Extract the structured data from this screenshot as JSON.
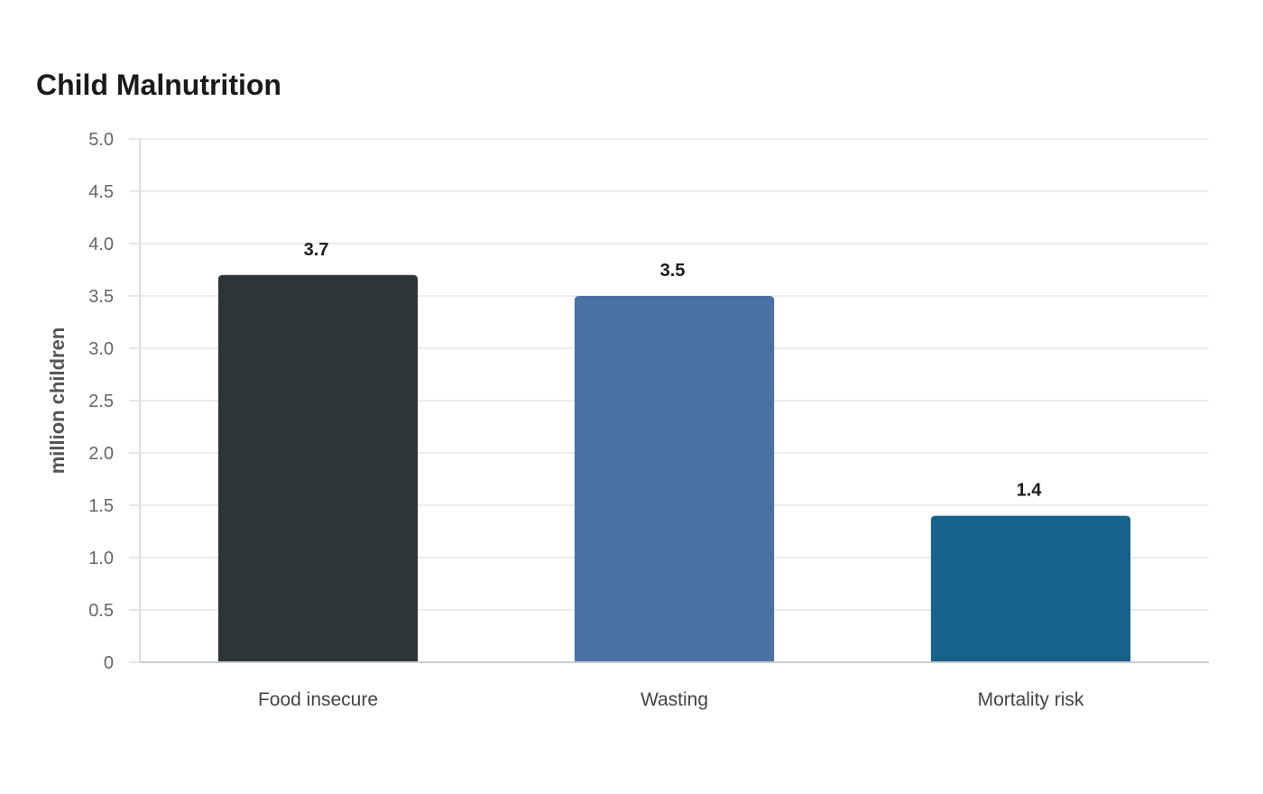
{
  "chart_data": {
    "type": "bar",
    "title": "Child Malnutrition",
    "xlabel": "",
    "ylabel": "million children",
    "categories": [
      "Food insecure",
      "Wasting",
      "Mortality risk"
    ],
    "values": [
      3.7,
      3.5,
      1.4
    ],
    "value_labels": [
      "3.7",
      "3.5",
      "1.4"
    ],
    "colors": [
      "#2e3538",
      "#4a70a4",
      "#17628a"
    ],
    "ylim": [
      0,
      5
    ],
    "yticks": [
      {
        "value": 0,
        "label": "0"
      },
      {
        "value": 0.5,
        "label": "0.5"
      },
      {
        "value": 1,
        "label": "1.0"
      },
      {
        "value": 1.5,
        "label": "1.5"
      },
      {
        "value": 2,
        "label": "2.0"
      },
      {
        "value": 2.5,
        "label": "2.5"
      },
      {
        "value": 3,
        "label": "3.0"
      },
      {
        "value": 3.5,
        "label": "3.5"
      },
      {
        "value": 4,
        "label": "4.0"
      },
      {
        "value": 4.5,
        "label": "4.5"
      },
      {
        "value": 5,
        "label": "5.0"
      }
    ],
    "grid": true,
    "legend": "none"
  }
}
